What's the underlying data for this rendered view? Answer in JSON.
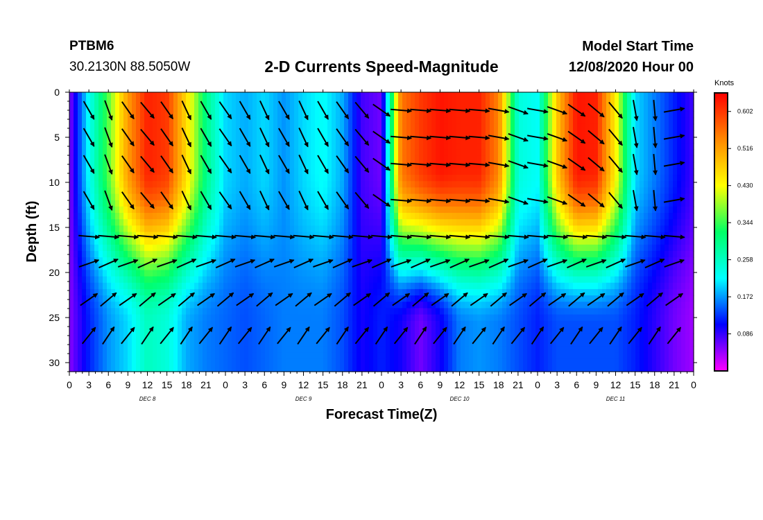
{
  "header": {
    "station_id": "PTBM6",
    "coordinates": "30.2130N 88.5050W",
    "title": "2-D Currents Speed-Magnitude",
    "start_label": "Model Start Time",
    "start_value": "12/08/2020 Hour 00"
  },
  "chart_data": {
    "type": "heatmap",
    "title": "2-D Currents Speed-Magnitude",
    "xlabel": "Forecast Time(Z)",
    "ylabel": "Depth (ft)",
    "x_ticks": [
      "0",
      "3",
      "6",
      "9",
      "12",
      "15",
      "18",
      "21",
      "0",
      "3",
      "6",
      "9",
      "12",
      "15",
      "18",
      "21",
      "0",
      "3",
      "6",
      "9",
      "12",
      "15",
      "18",
      "21",
      "0",
      "3",
      "6",
      "9",
      "12",
      "15",
      "18",
      "21",
      "0"
    ],
    "x_range_hours": [
      0,
      96
    ],
    "day_labels": [
      {
        "label": "DEC 8",
        "hour": 12
      },
      {
        "label": "DEC 9",
        "hour": 36
      },
      {
        "label": "DEC 10",
        "hour": 60
      },
      {
        "label": "DEC 11",
        "hour": 84
      }
    ],
    "y_ticks": [
      0,
      5,
      10,
      15,
      20,
      25,
      30
    ],
    "y_range": [
      0,
      31
    ],
    "y_inverted": true,
    "colorbar": {
      "label": "Knots",
      "ticks": [
        0.602,
        0.516,
        0.43,
        0.344,
        0.258,
        0.172,
        0.086
      ],
      "range": [
        0.0,
        0.645
      ],
      "colors": [
        "#ff00ff",
        "#0000ff",
        "#00ffff",
        "#00ff66",
        "#ffff00",
        "#ff8800",
        "#ff0000"
      ]
    },
    "speed_columns": [
      {
        "hour": 0,
        "top": 0.05,
        "bottom": 0.05
      },
      {
        "hour": 3,
        "top": 0.22,
        "bottom": 0.12
      },
      {
        "hour": 6,
        "top": 0.36,
        "bottom": 0.17
      },
      {
        "hour": 9,
        "top": 0.52,
        "bottom": 0.2
      },
      {
        "hour": 12,
        "top": 0.62,
        "bottom": 0.26
      },
      {
        "hour": 15,
        "top": 0.6,
        "bottom": 0.24
      },
      {
        "hour": 18,
        "top": 0.46,
        "bottom": 0.18
      },
      {
        "hour": 21,
        "top": 0.3,
        "bottom": 0.16
      },
      {
        "hour": 24,
        "top": 0.2,
        "bottom": 0.15
      },
      {
        "hour": 27,
        "top": 0.18,
        "bottom": 0.14
      },
      {
        "hour": 30,
        "top": 0.2,
        "bottom": 0.15
      },
      {
        "hour": 33,
        "top": 0.17,
        "bottom": 0.16
      },
      {
        "hour": 36,
        "top": 0.2,
        "bottom": 0.16
      },
      {
        "hour": 39,
        "top": 0.22,
        "bottom": 0.16
      },
      {
        "hour": 42,
        "top": 0.18,
        "bottom": 0.14
      },
      {
        "hour": 45,
        "top": 0.08,
        "bottom": 0.1
      },
      {
        "hour": 48,
        "top": 0.06,
        "bottom": 0.12
      },
      {
        "hour": 51,
        "top": 0.55,
        "bottom": 0.1
      },
      {
        "hour": 54,
        "top": 0.6,
        "bottom": 0.06
      },
      {
        "hour": 57,
        "top": 0.63,
        "bottom": 0.1
      },
      {
        "hour": 60,
        "top": 0.62,
        "bottom": 0.16
      },
      {
        "hour": 63,
        "top": 0.62,
        "bottom": 0.17
      },
      {
        "hour": 66,
        "top": 0.54,
        "bottom": 0.16
      },
      {
        "hour": 69,
        "top": 0.24,
        "bottom": 0.14
      },
      {
        "hour": 72,
        "top": 0.22,
        "bottom": 0.12
      },
      {
        "hour": 75,
        "top": 0.48,
        "bottom": 0.14
      },
      {
        "hour": 78,
        "top": 0.63,
        "bottom": 0.14
      },
      {
        "hour": 81,
        "top": 0.62,
        "bottom": 0.14
      },
      {
        "hour": 84,
        "top": 0.44,
        "bottom": 0.14
      },
      {
        "hour": 87,
        "top": 0.2,
        "bottom": 0.12
      },
      {
        "hour": 90,
        "top": 0.16,
        "bottom": 0.09
      },
      {
        "hour": 93,
        "top": 0.12,
        "bottom": 0.06
      },
      {
        "hour": 96,
        "top": 0.08,
        "bottom": 0.04
      }
    ],
    "vector_depths_ft": [
      2,
      5,
      8,
      12,
      16,
      19,
      23,
      27
    ],
    "vector_direction_columns": [
      {
        "hour": 0,
        "deg": 20
      },
      {
        "hour": 3,
        "deg": 150
      },
      {
        "hour": 6,
        "deg": 160
      },
      {
        "hour": 9,
        "deg": 145
      },
      {
        "hour": 12,
        "deg": 140
      },
      {
        "hour": 15,
        "deg": 145
      },
      {
        "hour": 18,
        "deg": 155
      },
      {
        "hour": 21,
        "deg": 150
      },
      {
        "hour": 24,
        "deg": 145
      },
      {
        "hour": 27,
        "deg": 150
      },
      {
        "hour": 30,
        "deg": 155
      },
      {
        "hour": 33,
        "deg": 150
      },
      {
        "hour": 36,
        "deg": 155
      },
      {
        "hour": 39,
        "deg": 150
      },
      {
        "hour": 42,
        "deg": 145
      },
      {
        "hour": 45,
        "deg": 140
      },
      {
        "hour": 48,
        "deg": 125
      },
      {
        "hour": 51,
        "deg": 95
      },
      {
        "hour": 54,
        "deg": 95
      },
      {
        "hour": 57,
        "deg": 95
      },
      {
        "hour": 60,
        "deg": 95
      },
      {
        "hour": 63,
        "deg": 95
      },
      {
        "hour": 66,
        "deg": 100
      },
      {
        "hour": 69,
        "deg": 110
      },
      {
        "hour": 72,
        "deg": 100
      },
      {
        "hour": 75,
        "deg": 110
      },
      {
        "hour": 78,
        "deg": 125
      },
      {
        "hour": 81,
        "deg": 130
      },
      {
        "hour": 84,
        "deg": 140
      },
      {
        "hour": 87,
        "deg": 170
      },
      {
        "hour": 90,
        "deg": 175
      },
      {
        "hour": 93,
        "deg": 80
      },
      {
        "hour": 96,
        "deg": 130
      }
    ]
  }
}
